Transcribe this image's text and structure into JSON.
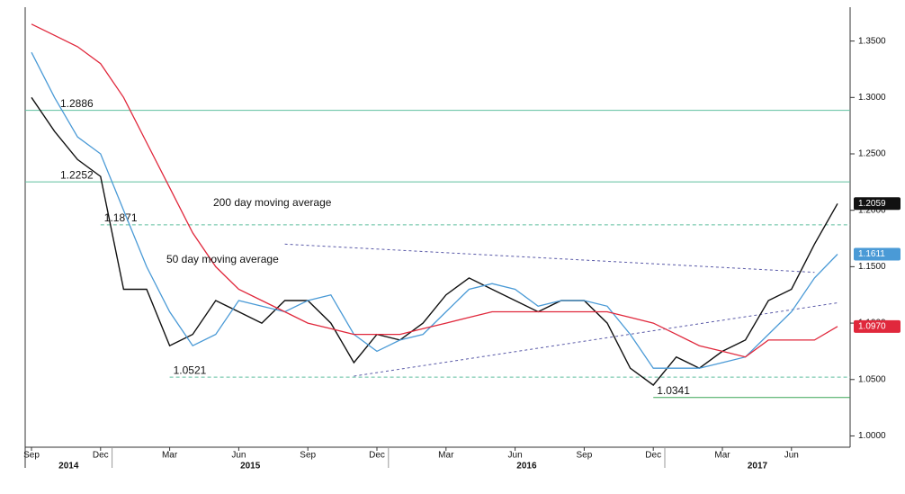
{
  "chart_data": {
    "type": "line",
    "x": [
      "2014-09",
      "2014-10",
      "2014-11",
      "2014-12",
      "2015-01",
      "2015-02",
      "2015-03",
      "2015-04",
      "2015-05",
      "2015-06",
      "2015-07",
      "2015-08",
      "2015-09",
      "2015-10",
      "2015-11",
      "2015-12",
      "2016-01",
      "2016-02",
      "2016-03",
      "2016-04",
      "2016-05",
      "2016-06",
      "2016-07",
      "2016-08",
      "2016-09",
      "2016-10",
      "2016-11",
      "2016-12",
      "2017-01",
      "2017-02",
      "2017-03",
      "2017-04",
      "2017-05",
      "2017-06",
      "2017-07",
      "2017-08"
    ],
    "series": [
      {
        "color": "#111111",
        "values": [
          1.3,
          1.27,
          1.245,
          1.23,
          1.13,
          1.13,
          1.08,
          1.09,
          1.12,
          1.11,
          1.1,
          1.12,
          1.12,
          1.1,
          1.065,
          1.09,
          1.085,
          1.1,
          1.125,
          1.14,
          1.13,
          1.12,
          1.11,
          1.12,
          1.12,
          1.1,
          1.06,
          1.045,
          1.07,
          1.06,
          1.075,
          1.085,
          1.12,
          1.13,
          1.17,
          1.2059
        ]
      },
      {
        "name": "50 day moving average",
        "color": "#4a9ad6",
        "values": [
          1.34,
          1.3,
          1.265,
          1.25,
          1.2,
          1.15,
          1.11,
          1.08,
          1.09,
          1.12,
          1.115,
          1.11,
          1.12,
          1.125,
          1.09,
          1.075,
          1.085,
          1.09,
          1.11,
          1.13,
          1.135,
          1.13,
          1.115,
          1.12,
          1.12,
          1.115,
          1.09,
          1.06,
          1.06,
          1.06,
          1.065,
          1.07,
          1.09,
          1.11,
          1.14,
          1.1611
        ]
      },
      {
        "name": "200 day moving average",
        "color": "#e0283c",
        "values": [
          1.365,
          1.355,
          1.345,
          1.33,
          1.3,
          1.26,
          1.22,
          1.18,
          1.15,
          1.13,
          1.12,
          1.11,
          1.1,
          1.095,
          1.09,
          1.09,
          1.09,
          1.095,
          1.1,
          1.105,
          1.11,
          1.11,
          1.11,
          1.11,
          1.11,
          1.11,
          1.105,
          1.1,
          1.09,
          1.08,
          1.075,
          1.07,
          1.085,
          1.085,
          1.085,
          1.097
        ]
      }
    ],
    "levels": [
      {
        "value": 1.2886,
        "style": "solid",
        "color": "#5fbf9f"
      },
      {
        "value": 1.2252,
        "style": "solid",
        "color": "#5fbf9f"
      },
      {
        "value": 1.1871,
        "style": "dashed",
        "color": "#5fbf9f",
        "start": "2014-12"
      },
      {
        "value": 1.0521,
        "style": "dashed",
        "color": "#5fbf9f",
        "start": "2015-03"
      },
      {
        "value": 1.0341,
        "style": "solid",
        "color": "#3aa655",
        "start": "2016-12"
      }
    ],
    "trendlines": [
      {
        "x": [
          "2015-08",
          "2017-07"
        ],
        "y": [
          1.17,
          1.145
        ],
        "color": "#5a5aa8"
      },
      {
        "x": [
          "2015-11",
          "2017-08"
        ],
        "y": [
          1.053,
          1.118
        ],
        "color": "#5a5aa8"
      }
    ],
    "tags": [
      {
        "value": 1.2059,
        "label": "1.2059",
        "color": "#111111"
      },
      {
        "value": 1.1611,
        "label": "1.1611",
        "color": "#4a9ad6"
      },
      {
        "value": 1.097,
        "label": "1.0970",
        "color": "#e0283c"
      }
    ],
    "ylim": [
      0.99,
      1.38
    ],
    "yticks": [
      {
        "value": 1.0,
        "label": "1.0000"
      },
      {
        "value": 1.05,
        "label": "1.0500"
      },
      {
        "value": 1.1,
        "label": "1.1000"
      },
      {
        "value": 1.15,
        "label": "1.1500"
      },
      {
        "value": 1.2,
        "label": "1.2000"
      },
      {
        "value": 1.25,
        "label": "1.2500"
      },
      {
        "value": 1.3,
        "label": "1.3000"
      },
      {
        "value": 1.35,
        "label": "1.3500"
      }
    ],
    "xlim": [
      "2014-09",
      "2017-08"
    ],
    "xticks": [
      {
        "value": "2014-09",
        "label": "Sep"
      },
      {
        "value": "2014-12",
        "label": "Dec"
      },
      {
        "value": "2015-03",
        "label": "Mar"
      },
      {
        "value": "2015-06",
        "label": "Jun"
      },
      {
        "value": "2015-09",
        "label": "Sep"
      },
      {
        "value": "2015-12",
        "label": "Dec"
      },
      {
        "value": "2016-03",
        "label": "Mar"
      },
      {
        "value": "2016-06",
        "label": "Jun"
      },
      {
        "value": "2016-09",
        "label": "Sep"
      },
      {
        "value": "2016-12",
        "label": "Dec"
      },
      {
        "value": "2017-03",
        "label": "Mar"
      },
      {
        "value": "2017-06",
        "label": "Jun"
      }
    ],
    "years": [
      "2014",
      "2015",
      "2016",
      "2017"
    ]
  }
}
